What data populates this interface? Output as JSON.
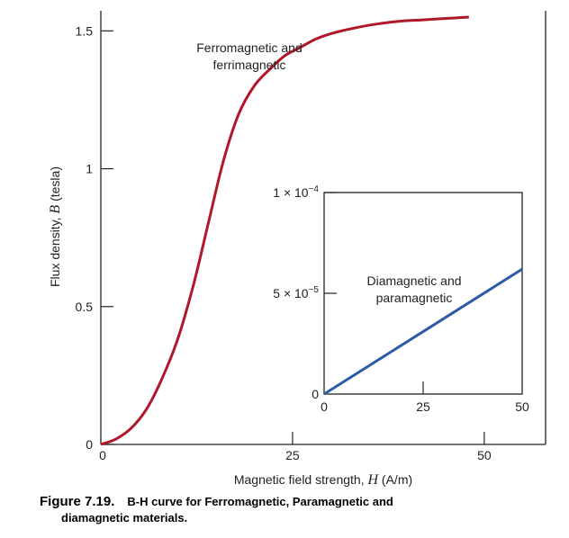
{
  "chart_data": [
    {
      "type": "line",
      "xlabel_prefix": "Magnetic field strength, ",
      "xlabel_var": "H",
      "xlabel_unit": " (A/m)",
      "ylabel_prefix": "Flux density, ",
      "ylabel_var": "B",
      "ylabel_unit": " (tesla)",
      "xlim": [
        0,
        58
      ],
      "ylim": [
        0,
        1.55
      ],
      "xticks": [
        0,
        25,
        50
      ],
      "xtick_labels": [
        "0",
        "25",
        "50"
      ],
      "yticks": [
        0,
        0.5,
        1,
        1.5
      ],
      "ytick_labels": [
        "0",
        "0.5",
        "1",
        "1.5"
      ],
      "grid": false,
      "series": [
        {
          "name": "Ferromagnetic and ferrimagnetic",
          "name_line1": "Ferromagnetic and",
          "name_line2": "ferrimagnetic",
          "color": "#b0182a",
          "x": [
            0,
            2,
            4,
            6,
            8,
            10,
            12,
            14,
            16,
            18,
            20,
            22,
            24,
            26,
            28,
            30,
            33,
            36,
            39,
            42,
            45,
            48
          ],
          "y": [
            0,
            0.02,
            0.06,
            0.13,
            0.24,
            0.38,
            0.57,
            0.8,
            1.03,
            1.2,
            1.3,
            1.36,
            1.41,
            1.44,
            1.47,
            1.49,
            1.51,
            1.525,
            1.535,
            1.54,
            1.545,
            1.55
          ]
        }
      ]
    },
    {
      "type": "line",
      "xlim": [
        0,
        50
      ],
      "ylim": [
        0,
        0.0001
      ],
      "xticks": [
        0,
        25,
        50
      ],
      "xtick_labels": [
        "0",
        "25",
        "50"
      ],
      "yticks": [
        0,
        5e-05,
        0.0001
      ],
      "ytick_labels": [
        "0",
        "5 × 10",
        "1 × 10"
      ],
      "ytick_exponents": [
        "",
        "−5",
        "−4"
      ],
      "grid": false,
      "series": [
        {
          "name": "Diamagnetic and paramagnetic",
          "name_line1": "Diamagnetic and",
          "name_line2": "paramagnetic",
          "color": "#2b5aa6",
          "x": [
            0,
            50
          ],
          "y": [
            0,
            6.2e-05
          ]
        }
      ]
    }
  ],
  "caption": {
    "label": "Figure 7.19.",
    "text_line1": "B-H curve for Ferromagnetic, Paramagnetic and",
    "text_line2": "diamagnetic materials."
  }
}
